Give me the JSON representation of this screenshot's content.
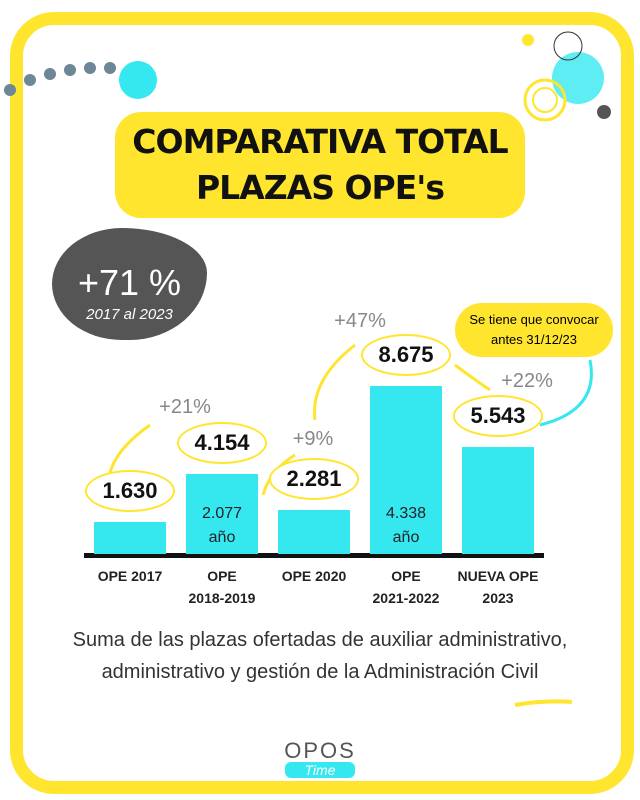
{
  "chart_data": {
    "type": "bar",
    "title": "COMPARATIVA TOTAL\nPLAZAS OPE's",
    "categories": [
      "OPE 2017",
      "OPE\n2018-2019",
      "OPE 2020",
      "OPE\n2021-2022",
      "NUEVA OPE\n2023"
    ],
    "values": [
      1630,
      4154,
      2281,
      8675,
      5543
    ],
    "value_labels": [
      "1.630",
      "4.154",
      "2.281",
      "8.675",
      "5.543"
    ],
    "color": "#35e8f0",
    "bar_notes": [
      null,
      "2.077\naño",
      null,
      "4.338\naño",
      null
    ],
    "growth_labels": [
      "+21%",
      "+9%",
      "+47%",
      "+22%"
    ],
    "highlight": {
      "value": "+71 %",
      "label": "2017 al 2023"
    },
    "callout": "Se tiene que convocar\nantes 31/12/23",
    "footnote": "Suma de las plazas ofertadas de auxiliar administrativo,\nadministrativo y gestión de la Administración Civil"
  },
  "brand": {
    "name": "OPOS",
    "tagline": "Time"
  }
}
